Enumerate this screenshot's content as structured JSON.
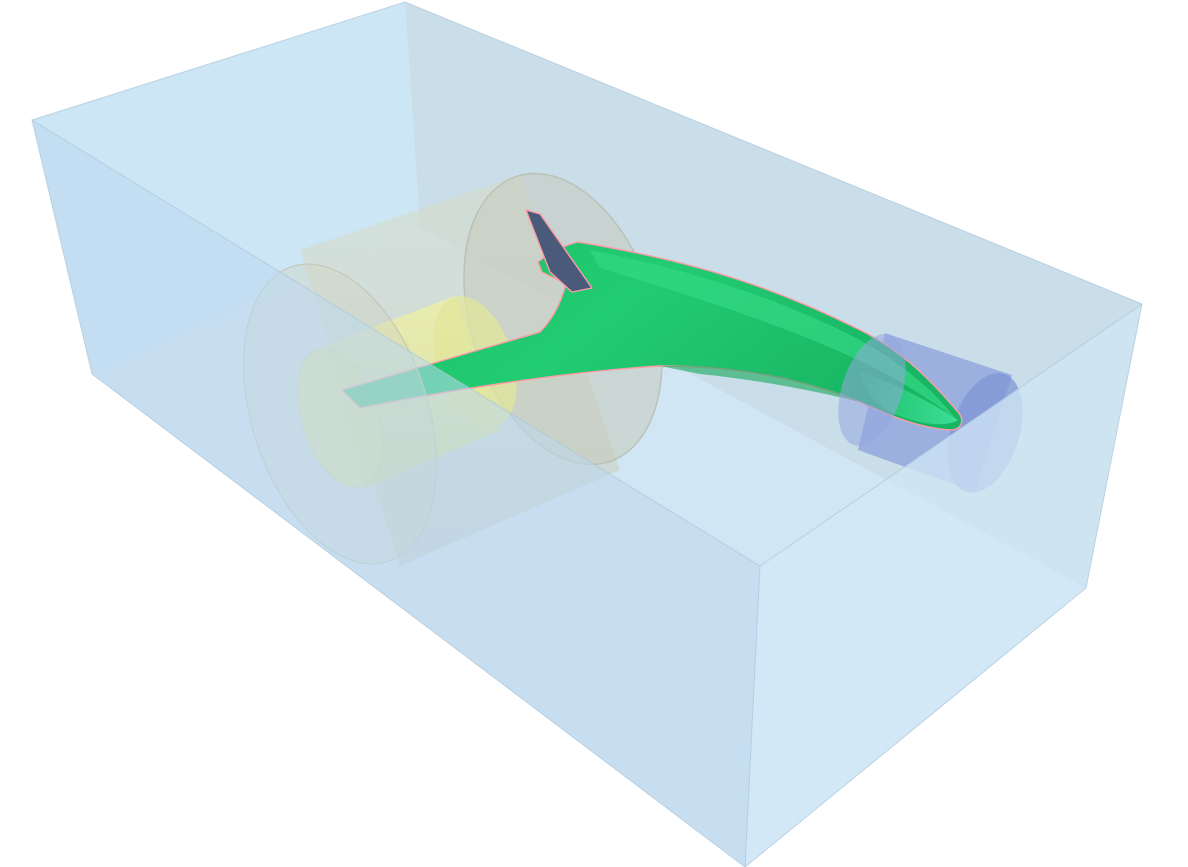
{
  "scene": {
    "colors": {
      "background": "#ffffff",
      "domain_box": "#bcdcf2",
      "domain_box_dark": "#b4c9d6",
      "outer_cylinder": "#c9ccbd",
      "inner_cylinder": "#e9eb9c",
      "wake_cylinder": "#8ca0dc",
      "wing_surface": "#1fc870",
      "wing_highlight": "#52e6a2",
      "wing_outline": "#ff9aa8",
      "vertical_fin": "#4a5a7a"
    },
    "components": [
      {
        "name": "flow-domain-box",
        "icon": "box-icon"
      },
      {
        "name": "rotating-zone-outer-cylinder",
        "icon": "cylinder-icon"
      },
      {
        "name": "rotating-zone-inner-cylinder",
        "icon": "cylinder-icon"
      },
      {
        "name": "wake-refinement-cylinder",
        "icon": "cylinder-icon"
      },
      {
        "name": "wing-surface",
        "icon": "wing-icon"
      },
      {
        "name": "vertical-fin",
        "icon": "fin-icon"
      }
    ]
  }
}
